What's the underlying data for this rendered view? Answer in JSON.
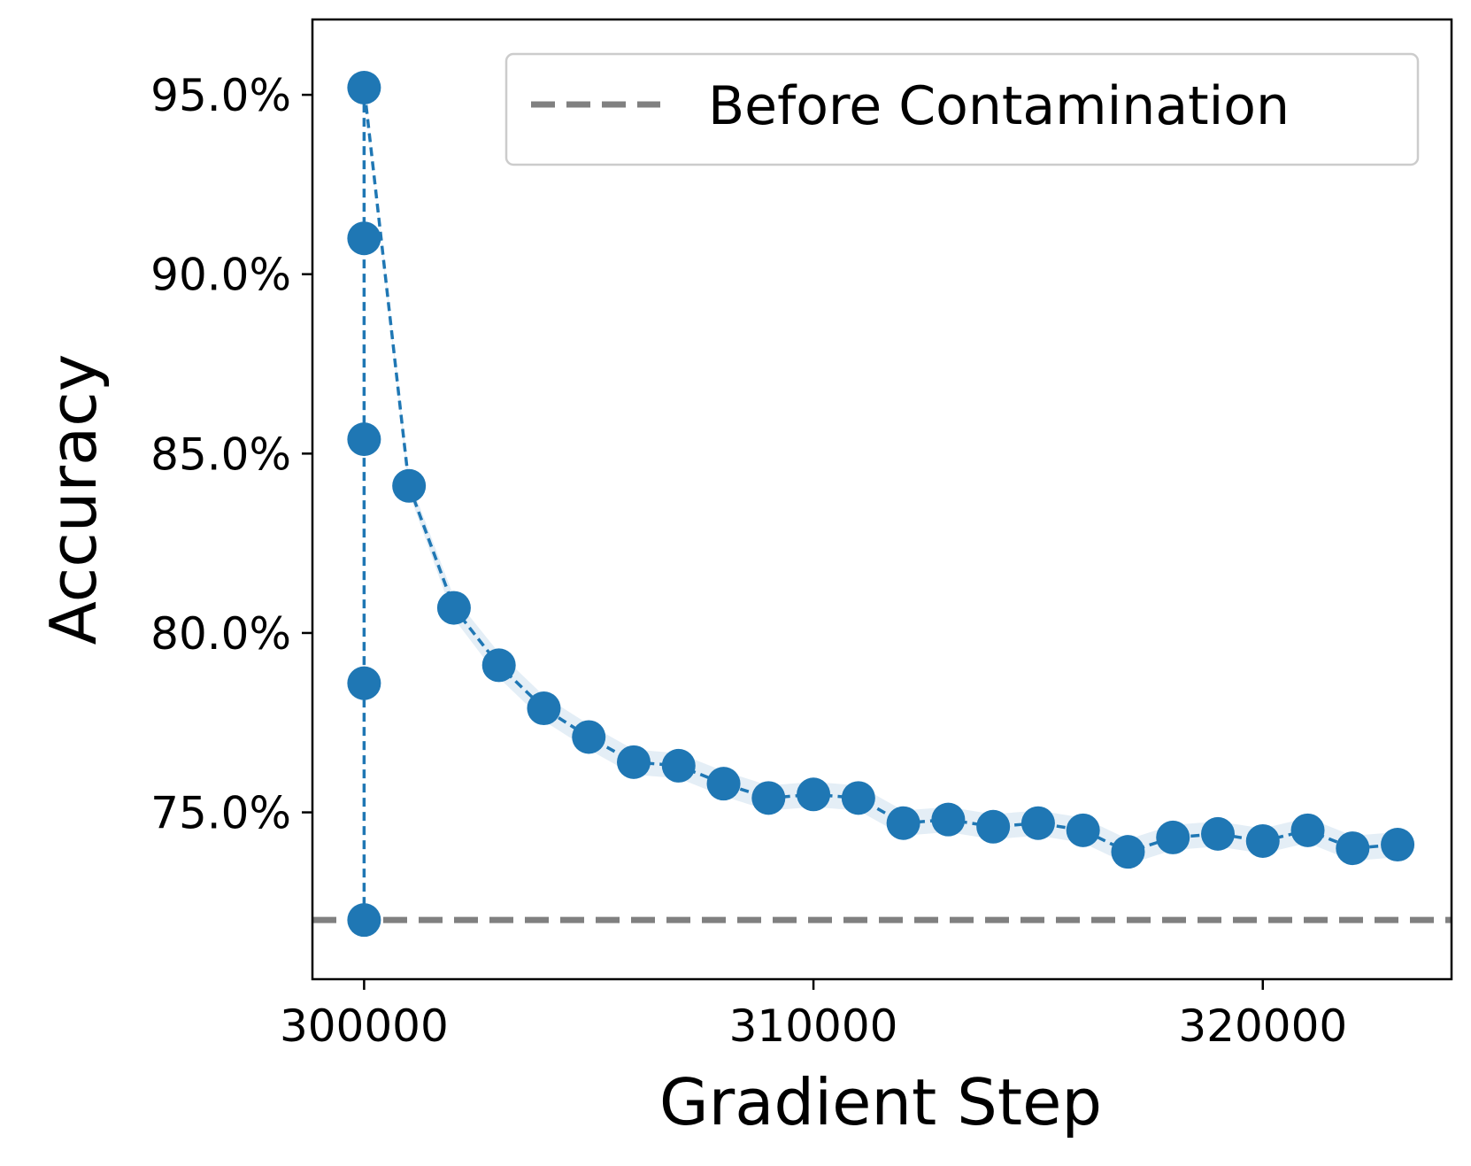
{
  "chart_data": {
    "type": "line",
    "title": "",
    "xlabel": "Gradient Step",
    "ylabel": "Accuracy",
    "xlim": [
      298850,
      324200
    ],
    "ylim": [
      70.35,
      97.1
    ],
    "x_ticks": [
      {
        "value": 300000,
        "label": "300000"
      },
      {
        "value": 310000,
        "label": "310000"
      },
      {
        "value": 320000,
        "label": "320000"
      }
    ],
    "y_ticks": [
      {
        "value": 75,
        "label": "75.0%"
      },
      {
        "value": 80,
        "label": "80.0%"
      },
      {
        "value": 85,
        "label": "85.0%"
      },
      {
        "value": 90,
        "label": "90.0%"
      },
      {
        "value": 95,
        "label": "95.0%"
      }
    ],
    "grid": false,
    "legend": {
      "position": "top-right",
      "entries": [
        "Before Contamination"
      ]
    },
    "reference_line": {
      "name": "Before Contamination",
      "y": 72.0,
      "color": "#808080",
      "style": "dashed"
    },
    "series": [
      {
        "color": "#1f77b4",
        "style": "dashed line with circle markers and shaded band",
        "x": [
          300000,
          300000,
          300000,
          300000,
          300000,
          301000,
          302000,
          303000,
          304000,
          305000,
          306000,
          307000,
          308000,
          309000,
          310000,
          311000,
          312000,
          313000,
          314000,
          315000,
          316000,
          317000,
          318000,
          319000,
          320000,
          321000,
          322000,
          323000
        ],
        "y": [
          72.0,
          78.6,
          85.4,
          91.0,
          95.2,
          84.1,
          80.7,
          79.1,
          77.9,
          77.1,
          76.4,
          76.3,
          75.8,
          75.4,
          75.5,
          75.4,
          74.7,
          74.8,
          74.6,
          74.7,
          74.5,
          73.9,
          74.3,
          74.4,
          74.2,
          74.5,
          74.0,
          74.1
        ],
        "band_halfwidth": [
          0,
          0,
          0,
          0,
          0,
          0.2,
          0.3,
          0.35,
          0.35,
          0.35,
          0.35,
          0.35,
          0.35,
          0.35,
          0.35,
          0.35,
          0.35,
          0.35,
          0.35,
          0.35,
          0.35,
          0.35,
          0.35,
          0.35,
          0.35,
          0.35,
          0.35,
          0.35
        ]
      }
    ]
  }
}
